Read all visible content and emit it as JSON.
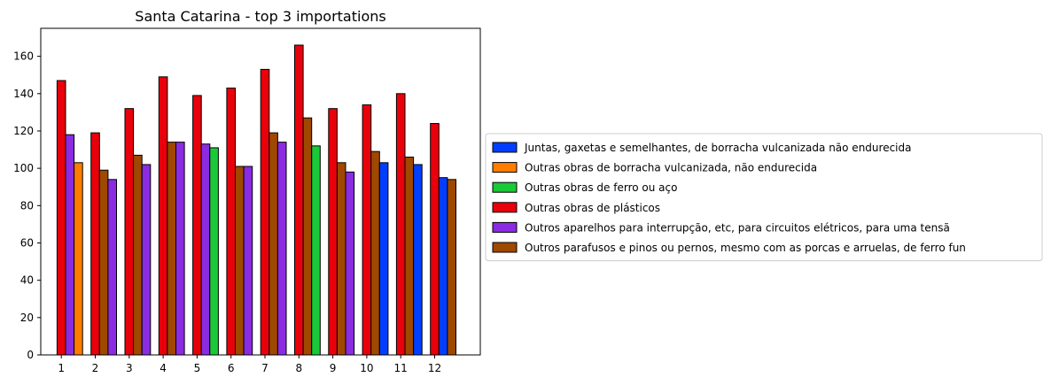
{
  "chart_data": {
    "type": "bar",
    "title": "Santa Catarina - top 3 importations",
    "xlabel": "",
    "ylabel": "",
    "ylim": [
      0,
      175
    ],
    "yticks": [
      0,
      20,
      40,
      60,
      80,
      100,
      120,
      140,
      160
    ],
    "categories": [
      "1",
      "2",
      "3",
      "4",
      "5",
      "6",
      "7",
      "8",
      "9",
      "10",
      "11",
      "12"
    ],
    "grid": false,
    "legend_position": "right",
    "series": [
      {
        "name": "Juntas, gaxetas e semelhantes, de borracha vulcanizada não endurecida",
        "color": "#023eff",
        "values": [
          null,
          null,
          null,
          null,
          null,
          null,
          null,
          null,
          null,
          103,
          102,
          95
        ]
      },
      {
        "name": "Outras obras de borracha vulcanizada, não endurecida",
        "color": "#ff7c00",
        "values": [
          103,
          null,
          null,
          null,
          null,
          null,
          null,
          null,
          null,
          null,
          null,
          null
        ]
      },
      {
        "name": "Outras obras de ferro ou aço",
        "color": "#1ac938",
        "values": [
          null,
          null,
          null,
          null,
          111,
          null,
          null,
          112,
          null,
          null,
          null,
          null
        ]
      },
      {
        "name": "Outras obras de plásticos",
        "color": "#e8000b",
        "values": [
          147,
          119,
          132,
          149,
          139,
          143,
          153,
          166,
          132,
          134,
          140,
          124
        ]
      },
      {
        "name": "Outros aparelhos para interrupção, etc, para circuitos elétricos, para uma tensã",
        "color": "#8b2be2",
        "values": [
          118,
          94,
          102,
          114,
          113,
          101,
          114,
          null,
          98,
          null,
          null,
          null
        ]
      },
      {
        "name": "Outros parafusos e pinos ou pernos, mesmo com as porcas e arruelas, de ferro fun",
        "color": "#9f4800",
        "values": [
          null,
          99,
          107,
          114,
          null,
          101,
          119,
          127,
          103,
          109,
          106,
          94
        ]
      }
    ],
    "bars": [
      {
        "series": 3,
        "cat": 0,
        "value": 147
      },
      {
        "series": 4,
        "cat": 0,
        "value": 118
      },
      {
        "series": 1,
        "cat": 0,
        "value": 103
      },
      {
        "series": 3,
        "cat": 1,
        "value": 119
      },
      {
        "series": 5,
        "cat": 1,
        "value": 99
      },
      {
        "series": 4,
        "cat": 1,
        "value": 94
      },
      {
        "series": 3,
        "cat": 2,
        "value": 132
      },
      {
        "series": 5,
        "cat": 2,
        "value": 107
      },
      {
        "series": 4,
        "cat": 2,
        "value": 102
      },
      {
        "series": 3,
        "cat": 3,
        "value": 149
      },
      {
        "series": 5,
        "cat": 3,
        "value": 114
      },
      {
        "series": 4,
        "cat": 3,
        "value": 114
      },
      {
        "series": 3,
        "cat": 4,
        "value": 139
      },
      {
        "series": 4,
        "cat": 4,
        "value": 113
      },
      {
        "series": 2,
        "cat": 4,
        "value": 111
      },
      {
        "series": 3,
        "cat": 5,
        "value": 143
      },
      {
        "series": 5,
        "cat": 5,
        "value": 101
      },
      {
        "series": 4,
        "cat": 5,
        "value": 101
      },
      {
        "series": 3,
        "cat": 6,
        "value": 153
      },
      {
        "series": 5,
        "cat": 6,
        "value": 119
      },
      {
        "series": 4,
        "cat": 6,
        "value": 114
      },
      {
        "series": 3,
        "cat": 7,
        "value": 166
      },
      {
        "series": 5,
        "cat": 7,
        "value": 127
      },
      {
        "series": 2,
        "cat": 7,
        "value": 112
      },
      {
        "series": 3,
        "cat": 8,
        "value": 132
      },
      {
        "series": 5,
        "cat": 8,
        "value": 103
      },
      {
        "series": 4,
        "cat": 8,
        "value": 98
      },
      {
        "series": 3,
        "cat": 9,
        "value": 134
      },
      {
        "series": 5,
        "cat": 9,
        "value": 109
      },
      {
        "series": 0,
        "cat": 9,
        "value": 103
      },
      {
        "series": 3,
        "cat": 10,
        "value": 140
      },
      {
        "series": 5,
        "cat": 10,
        "value": 106
      },
      {
        "series": 0,
        "cat": 10,
        "value": 102
      },
      {
        "series": 3,
        "cat": 11,
        "value": 124
      },
      {
        "series": 0,
        "cat": 11,
        "value": 95
      },
      {
        "series": 5,
        "cat": 11,
        "value": 94
      }
    ]
  }
}
